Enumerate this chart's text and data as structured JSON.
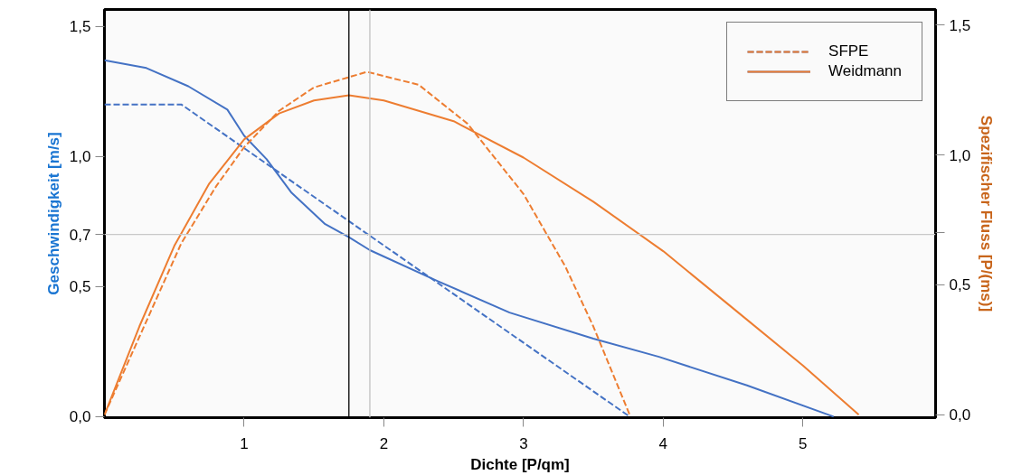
{
  "chart_data": {
    "type": "line",
    "xlabel": "Dichte [P/qm]",
    "ylabel": "Geschwindigkeit [m/s]",
    "y2label": "Spezifischer Fluss [P/(ms)]",
    "xlim": [
      0,
      5.95
    ],
    "xticks": [
      1,
      2,
      3,
      4,
      5
    ],
    "ylim": [
      -0.004,
      1.565
    ],
    "yticks": [
      {
        "value": 0,
        "label": "0,0"
      },
      {
        "value": 0.5,
        "label": "0,5"
      },
      {
        "value": 0.7,
        "label": "0,7"
      },
      {
        "value": 1.0,
        "label": "1,0"
      },
      {
        "value": 1.5,
        "label": "1,5"
      }
    ],
    "y2lim": [
      -0.011,
      1.56
    ],
    "y2ticks": [
      {
        "value": 0,
        "label": "0,0"
      },
      {
        "value": 0.5,
        "label": "0,5"
      },
      {
        "value": 0.7,
        "label": null
      },
      {
        "value": 1.0,
        "label": "1,0"
      },
      {
        "value": 1.5,
        "label": "1,5"
      }
    ],
    "grid": false,
    "legend": "top right",
    "marker": "none",
    "series": [
      {
        "name": "SFPE",
        "color": "#4472c4",
        "line_style": "dashed",
        "x": [
          0,
          0.55,
          3.76
        ],
        "values": [
          1.2,
          1.2,
          0
        ]
      },
      {
        "name": "Weidmann",
        "color": "#4472c4",
        "line_style": "solid",
        "x": [
          0,
          0.3,
          0.6,
          0.88,
          1.0,
          1.16,
          1.34,
          1.58,
          1.75,
          1.9,
          2.39,
          2.9,
          3.5,
          3.97,
          4.6,
          5.22
        ],
        "values": [
          1.37,
          1.34,
          1.27,
          1.18,
          1.08,
          0.99,
          0.86,
          0.74,
          0.69,
          0.64,
          0.52,
          0.4,
          0.3,
          0.23,
          0.12,
          0
        ]
      },
      {
        "color": "#ed7d31",
        "line_style": "dashed",
        "axis": "y2",
        "x": [
          0,
          0.25,
          0.55,
          0.8,
          1.0,
          1.25,
          1.5,
          1.88,
          2.25,
          2.6,
          3.0,
          3.3,
          3.5,
          3.76
        ],
        "values": [
          0,
          0.3,
          0.66,
          0.88,
          1.03,
          1.17,
          1.26,
          1.32,
          1.27,
          1.12,
          0.85,
          0.57,
          0.34,
          0
        ]
      },
      {
        "color": "#ed7d31",
        "line_style": "solid",
        "axis": "y2",
        "x": [
          0,
          0.25,
          0.5,
          0.75,
          1.0,
          1.25,
          1.5,
          1.75,
          2.0,
          2.5,
          3.0,
          3.5,
          4.0,
          4.5,
          5.0,
          5.4
        ],
        "values": [
          0,
          0.34,
          0.65,
          0.89,
          1.06,
          1.16,
          1.21,
          1.23,
          1.21,
          1.13,
          0.99,
          0.82,
          0.63,
          0.41,
          0.19,
          0
        ]
      }
    ],
    "ref_lines": [
      {
        "axis": "y",
        "value": 0.7,
        "color": "#c8c8c8"
      },
      {
        "axis": "x",
        "value": 1.75,
        "color": "#000000"
      },
      {
        "axis": "x",
        "value": 1.9,
        "color": "#c0c0c0"
      }
    ]
  }
}
